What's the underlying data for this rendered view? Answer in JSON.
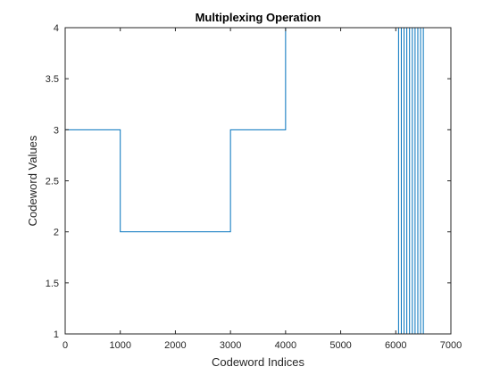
{
  "chart_data": {
    "type": "line",
    "title": "Multiplexing Operation",
    "xlabel": "Codeword Indices",
    "ylabel": "Codeword Values",
    "xlim": [
      0,
      7000
    ],
    "ylim": [
      1,
      4
    ],
    "x_ticks": [
      0,
      1000,
      2000,
      3000,
      4000,
      5000,
      6000,
      7000
    ],
    "x_tick_labels": [
      "0",
      "1000",
      "2000",
      "3000",
      "4000",
      "5000",
      "6000",
      "7000"
    ],
    "y_ticks": [
      1,
      1.5,
      2,
      2.5,
      3,
      3.5,
      4
    ],
    "y_tick_labels": [
      "1",
      "1.5",
      "2",
      "2.5",
      "3",
      "3.5",
      "4"
    ],
    "grid": false,
    "series": [
      {
        "color": "#0072BD",
        "x": [
          0,
          1000,
          1000,
          3000,
          3000,
          4000,
          4000,
          6050,
          6050,
          6100,
          6100,
          6150,
          6150,
          6200,
          6200,
          6250,
          6250,
          6300,
          6300,
          6350,
          6350,
          6400,
          6400,
          6450,
          6450,
          6500,
          6500,
          6550
        ],
        "y": [
          3,
          3,
          2,
          2,
          3,
          3,
          4,
          4,
          1,
          1,
          4,
          4,
          1,
          1,
          4,
          4,
          1,
          1,
          4,
          4,
          1,
          1,
          4,
          4,
          1,
          1,
          4,
          4
        ]
      }
    ]
  }
}
